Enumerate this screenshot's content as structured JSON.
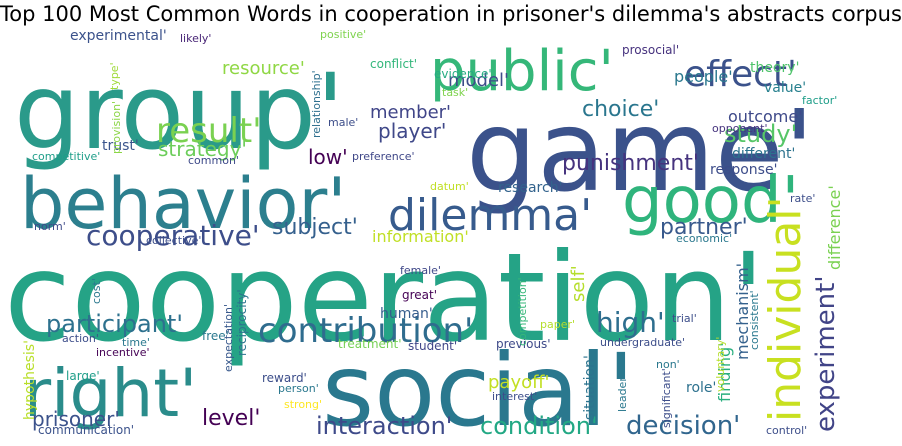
{
  "title": "Top 100 Most Common Words in cooperation in prisoner's dilemma's abstracts corpus",
  "words": [
    {
      "text": "cooperation'",
      "color": "#25a386"
    },
    {
      "text": "social'",
      "color": "#2a788e"
    },
    {
      "text": "game'",
      "color": "#3b528b"
    },
    {
      "text": "group'",
      "color": "#2a9a8a"
    },
    {
      "text": "behavior'",
      "color": "#2c7f8e"
    },
    {
      "text": "public'",
      "color": "#35b779"
    },
    {
      "text": "right'",
      "color": "#2a8c8b"
    },
    {
      "text": "good'",
      "color": "#2fb47c"
    },
    {
      "text": "dilemma'",
      "color": "#375b8d"
    },
    {
      "text": "individual'",
      "color": "#c8e020"
    },
    {
      "text": "contribution'",
      "color": "#2f6c8e"
    },
    {
      "text": "effect'",
      "color": "#3b528b"
    },
    {
      "text": "cooperative'",
      "color": "#3d4e8a"
    },
    {
      "text": "result'",
      "color": "#7ad151"
    },
    {
      "text": "experiment'",
      "color": "#414487"
    },
    {
      "text": "participant'",
      "color": "#2d718e"
    },
    {
      "text": "condition'",
      "color": "#22a884"
    },
    {
      "text": "decision'",
      "color": "#31668e"
    },
    {
      "text": "interaction'",
      "color": "#3e4a89"
    },
    {
      "text": "level'",
      "color": "#440154"
    },
    {
      "text": "subject'",
      "color": "#35608d"
    },
    {
      "text": "high'",
      "color": "#2e6e8e"
    },
    {
      "text": "punishment'",
      "color": "#46337e"
    },
    {
      "text": "choice'",
      "color": "#2a768e"
    },
    {
      "text": "study'",
      "color": "#56c667"
    },
    {
      "text": "strategy'",
      "color": "#6ccd5a"
    },
    {
      "text": "partner'",
      "color": "#38598c"
    },
    {
      "text": "player'",
      "color": "#3f4889"
    },
    {
      "text": "information'",
      "color": "#c0df25"
    },
    {
      "text": "member'",
      "color": "#404588"
    },
    {
      "text": "people'",
      "color": "#2a788e"
    },
    {
      "text": "resource'",
      "color": "#8fd744"
    },
    {
      "text": "model'",
      "color": "#3e4c8a"
    },
    {
      "text": "prisoner'",
      "color": "#3b528b"
    },
    {
      "text": "payoff'",
      "color": "#c2df23"
    },
    {
      "text": "difference'",
      "color": "#7ad151"
    },
    {
      "text": "self'",
      "color": "#b5de2b"
    },
    {
      "text": "finding'",
      "color": "#29af7f"
    },
    {
      "text": "outcome'",
      "color": "#3e4989"
    },
    {
      "text": "low'",
      "color": "#440154"
    },
    {
      "text": "research'",
      "color": "#33638d"
    },
    {
      "text": "mechanism'",
      "color": "#34618d"
    },
    {
      "text": "situation'",
      "color": "#2c738e"
    },
    {
      "text": "experimental'",
      "color": "#3b528b"
    },
    {
      "text": "trust'",
      "color": "#3a548c"
    },
    {
      "text": "different'",
      "color": "#2c728e"
    },
    {
      "text": "human'",
      "color": "#365d8d"
    },
    {
      "text": "response'",
      "color": "#3d4d8a"
    },
    {
      "text": "theory'",
      "color": "#4ec36b"
    },
    {
      "text": "value'",
      "color": "#27808e"
    },
    {
      "text": "hypothesis'",
      "color": "#b8de29"
    },
    {
      "text": "communication'",
      "color": "#3b528b"
    },
    {
      "text": "reciprocity'",
      "color": "#2c738e"
    },
    {
      "text": "large'",
      "color": "#1f9e89"
    },
    {
      "text": "conflict'",
      "color": "#32b67a"
    },
    {
      "text": "previous'",
      "color": "#3e4a89"
    },
    {
      "text": "expectation'",
      "color": "#38588c"
    },
    {
      "text": "treatment'",
      "color": "#75d054"
    },
    {
      "text": "student'",
      "color": "#404588"
    },
    {
      "text": "role'",
      "color": "#2d718e"
    },
    {
      "text": "competitive'",
      "color": "#1f9e89"
    },
    {
      "text": "prosocial'",
      "color": "#46327e"
    },
    {
      "text": "relationship'",
      "color": "#2e6f8e"
    },
    {
      "text": "evidence'",
      "color": "#25ac82"
    },
    {
      "text": "positive'",
      "color": "#7fd34e"
    },
    {
      "text": "likely'",
      "color": "#482576"
    },
    {
      "text": "type'",
      "color": "#a0da39"
    },
    {
      "text": "provision'",
      "color": "#8bd646"
    },
    {
      "text": "common'",
      "color": "#3e4a89"
    },
    {
      "text": "preference'",
      "color": "#3f4788"
    },
    {
      "text": "male'",
      "color": "#3d4e8a"
    },
    {
      "text": "task'",
      "color": "#7fd34e"
    },
    {
      "text": "datum'",
      "color": "#c0df25"
    },
    {
      "text": "norm'",
      "color": "#3e4a89"
    },
    {
      "text": "collective'",
      "color": "#3d4e8a"
    },
    {
      "text": "economic'",
      "color": "#2a788e"
    },
    {
      "text": "rate'",
      "color": "#3d4e8a"
    },
    {
      "text": "factor'",
      "color": "#1f9e89"
    },
    {
      "text": "opponent'",
      "color": "#46337e"
    },
    {
      "text": "female'",
      "color": "#3f4889"
    },
    {
      "text": "great'",
      "color": "#440154"
    },
    {
      "text": "competition'",
      "color": "#35b779"
    },
    {
      "text": "cost'",
      "color": "#2a788e"
    },
    {
      "text": "paper'",
      "color": "#b5de2b"
    },
    {
      "text": "trial'",
      "color": "#3d4e8a"
    },
    {
      "text": "undergraduate'",
      "color": "#3d4e8a"
    },
    {
      "text": "incentive'",
      "color": "#440154"
    },
    {
      "text": "free'",
      "color": "#2a788e"
    },
    {
      "text": "time'",
      "color": "#2a788e"
    },
    {
      "text": "action'",
      "color": "#3d4e8a"
    },
    {
      "text": "reward'",
      "color": "#3d4e8a"
    },
    {
      "text": "person'",
      "color": "#2a788e"
    },
    {
      "text": "strong'",
      "color": "#fde725"
    },
    {
      "text": "interest'",
      "color": "#3d4e8a"
    },
    {
      "text": "non'",
      "color": "#2a788e"
    },
    {
      "text": "leader'",
      "color": "#2a788e"
    },
    {
      "text": "significant'",
      "color": "#3d4e8a"
    },
    {
      "text": "voluntary'",
      "color": "#b5de2b"
    },
    {
      "text": "consistent'",
      "color": "#2a788e"
    },
    {
      "text": "control'",
      "color": "#3d4e8a"
    }
  ]
}
